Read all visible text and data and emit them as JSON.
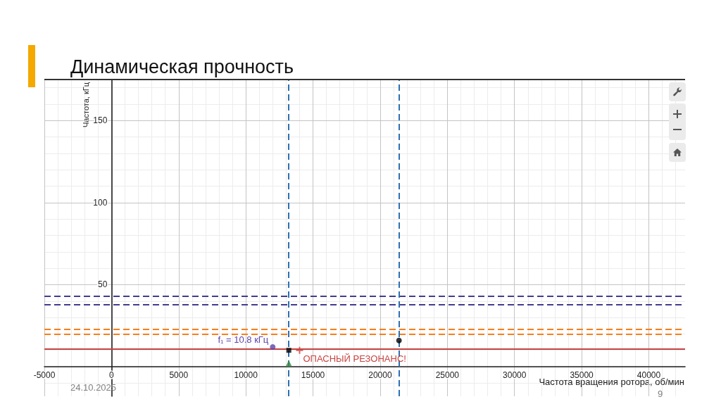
{
  "chart_data": {
    "type": "scatter",
    "title": "Динамическая прочность",
    "xlabel": "Частота вращения ротора, об/мин",
    "ylabel": "Частота, кГц",
    "xlim": [
      -5000,
      42700
    ],
    "xticks": [
      -5000,
      0,
      5000,
      10000,
      15000,
      20000,
      25000,
      30000,
      35000,
      40000
    ],
    "ylim": [
      -18,
      175
    ],
    "yticks": [
      {
        "value": 0,
        "label": null
      },
      50,
      100,
      150
    ],
    "grid": true,
    "series": [
      {
        "x": [
          12000
        ],
        "values": [
          12
        ],
        "color": "#6042a6",
        "marker": "circle"
      },
      {
        "x": [
          13200
        ],
        "values": [
          10
        ],
        "color": "#000000",
        "marker": "square"
      },
      {
        "x": [
          14000
        ],
        "values": [
          10
        ],
        "color": "#c74440",
        "marker": "cross"
      },
      {
        "x": [
          13200
        ],
        "values": [
          2
        ],
        "color": "#388c46",
        "marker": "triangle"
      },
      {
        "x": [
          21400
        ],
        "values": [
          16
        ],
        "color": "#000000",
        "marker": "circle"
      }
    ],
    "ref_lines": [
      {
        "axis": "y",
        "value": 43,
        "color": "#433c8f",
        "line_style": "dashed"
      },
      {
        "axis": "y",
        "value": 38,
        "color": "#433c8f",
        "line_style": "dashed"
      },
      {
        "axis": "y",
        "value": 23,
        "color": "#fa7e19",
        "line_style": "dashed"
      },
      {
        "axis": "y",
        "value": 20,
        "color": "#fa7e19",
        "line_style": "dashed"
      },
      {
        "axis": "y",
        "value": 10.8,
        "color": "#c74440",
        "line_style": "solid"
      },
      {
        "axis": "x",
        "value": 13200,
        "color": "#2d70b3",
        "line_style": "dashed"
      },
      {
        "axis": "x",
        "value": 21400,
        "color": "#2d70b3",
        "line_style": "dashed"
      }
    ],
    "annotations": [
      {
        "text": "f₁ = 10.8 кГц",
        "x": 12000,
        "y": 12
      },
      {
        "text": "ОПАСНЫЙ РЕЗОНАНС!",
        "x": 14000,
        "y": 10
      },
      "24.10.2025",
      "9"
    ]
  }
}
